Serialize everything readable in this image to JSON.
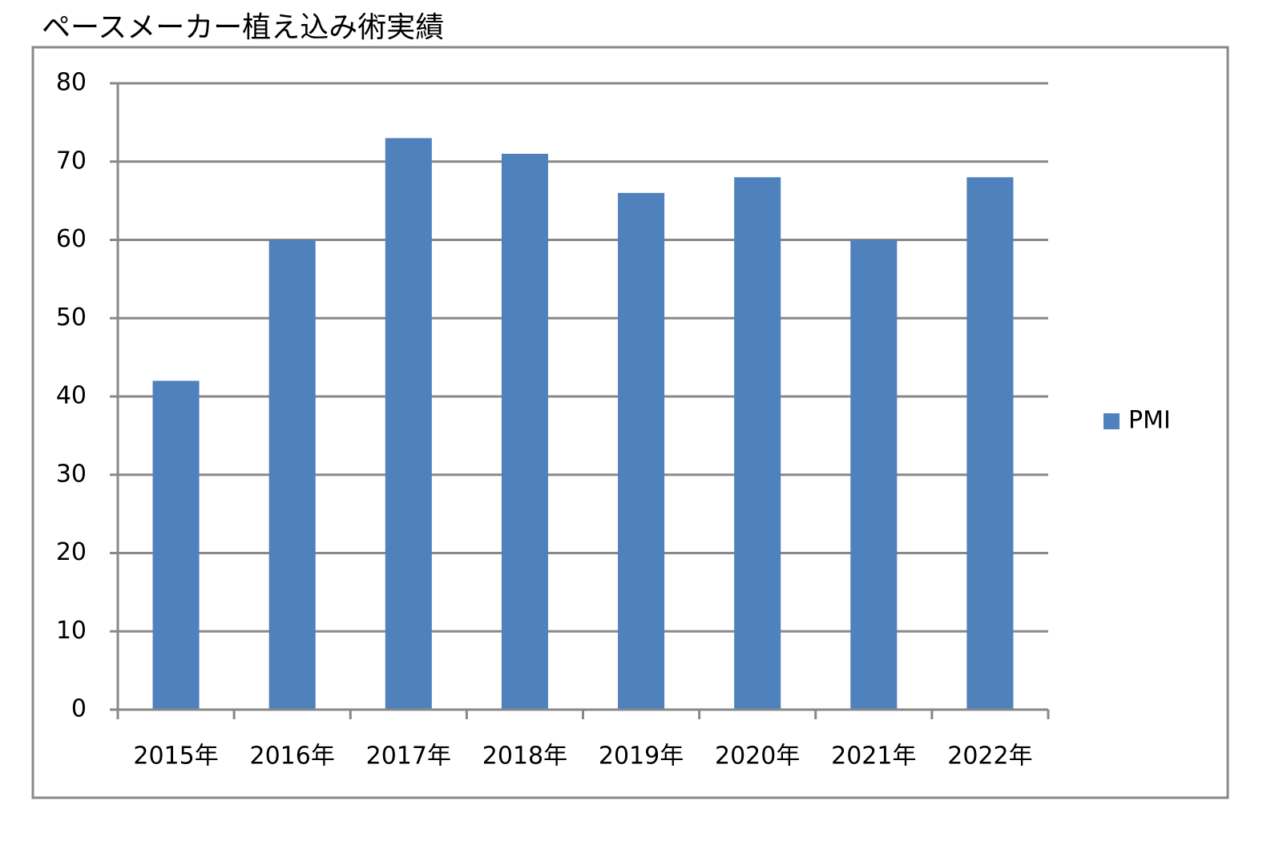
{
  "chart_data": {
    "type": "bar",
    "title": "ペースメーカー植え込み術実績",
    "categories": [
      "2015年",
      "2016年",
      "2017年",
      "2018年",
      "2019年",
      "2020年",
      "2021年",
      "2022年"
    ],
    "series": [
      {
        "name": "PMI",
        "color": "#4f81bd",
        "values": [
          42,
          60,
          73,
          71,
          66,
          68,
          60,
          68
        ]
      }
    ],
    "ylim": [
      0,
      80
    ],
    "yticks": [
      0,
      10,
      20,
      30,
      40,
      50,
      60,
      70,
      80
    ],
    "grid": true,
    "legend": "right"
  }
}
